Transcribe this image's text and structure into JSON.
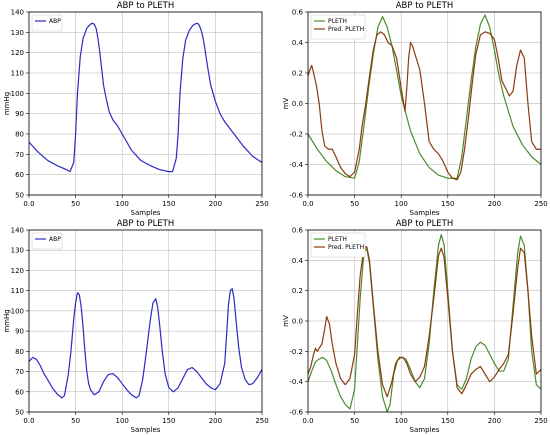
{
  "chart_data": [
    {
      "id": "p1",
      "type": "line",
      "title": "ABP to PLETH",
      "xlabel": "Samples",
      "ylabel": "mmHg",
      "xlim": [
        0,
        250
      ],
      "ylim": [
        50,
        140
      ],
      "xticks": [
        0,
        50,
        100,
        150,
        200,
        250
      ],
      "yticks": [
        50,
        60,
        70,
        80,
        90,
        100,
        110,
        120,
        130,
        140
      ],
      "grid": true,
      "legend": "top-left",
      "series": [
        {
          "name": "ABP",
          "color": "#2b2bc4",
          "x": [
            0,
            10,
            20,
            30,
            40,
            44,
            48,
            50,
            52,
            55,
            58,
            62,
            66,
            68,
            70,
            72,
            74,
            76,
            78,
            80,
            83,
            86,
            90,
            95,
            100,
            105,
            110,
            120,
            130,
            140,
            150,
            154,
            158,
            160,
            162,
            165,
            168,
            172,
            176,
            180,
            182,
            184,
            186,
            188,
            190,
            192,
            195,
            200,
            205,
            210,
            220,
            230,
            240,
            250
          ],
          "y": [
            76,
            71,
            67,
            64.5,
            62.5,
            61.5,
            66,
            80,
            100,
            118,
            127,
            132,
            134,
            134.5,
            134,
            132,
            127,
            120,
            112,
            104,
            97,
            91,
            87,
            84,
            80,
            76,
            72,
            67,
            64.5,
            62.5,
            61.5,
            61.5,
            68,
            80,
            100,
            117,
            126,
            131,
            133.5,
            134.5,
            134,
            132,
            129,
            124,
            118,
            112,
            104,
            96,
            90,
            86,
            80,
            74,
            69,
            66
          ]
        }
      ]
    },
    {
      "id": "p2",
      "type": "line",
      "title": "ABP to PLETH",
      "xlabel": "Samples",
      "ylabel": "mV",
      "xlim": [
        0,
        250
      ],
      "ylim": [
        -0.6,
        0.6
      ],
      "xticks": [
        0,
        50,
        100,
        150,
        200,
        250
      ],
      "yticks": [
        -0.6,
        -0.4,
        -0.2,
        0.0,
        0.2,
        0.4,
        0.6
      ],
      "grid": true,
      "legend": "top-left",
      "series": [
        {
          "name": "PLETH",
          "color": "#4a8c2a",
          "x": [
            0,
            10,
            20,
            30,
            40,
            50,
            55,
            60,
            65,
            70,
            75,
            80,
            85,
            90,
            95,
            100,
            110,
            120,
            130,
            140,
            150,
            160,
            165,
            170,
            175,
            180,
            185,
            190,
            195,
            200,
            205,
            210,
            220,
            230,
            240,
            250
          ],
          "y": [
            -0.2,
            -0.3,
            -0.38,
            -0.44,
            -0.48,
            -0.49,
            -0.38,
            -0.15,
            0.1,
            0.32,
            0.5,
            0.57,
            0.5,
            0.38,
            0.22,
            0.05,
            -0.18,
            -0.33,
            -0.42,
            -0.47,
            -0.49,
            -0.49,
            -0.35,
            -0.1,
            0.15,
            0.37,
            0.52,
            0.58,
            0.5,
            0.35,
            0.18,
            0.05,
            -0.15,
            -0.27,
            -0.35,
            -0.4
          ]
        },
        {
          "name": "Pred. PLETH",
          "color": "#8b3a0e",
          "x": [
            0,
            2,
            4,
            6,
            9,
            12,
            15,
            18,
            22,
            26,
            30,
            35,
            40,
            45,
            50,
            55,
            58,
            62,
            66,
            70,
            74,
            78,
            82,
            86,
            90,
            95,
            100,
            104,
            106,
            108,
            110,
            112,
            116,
            120,
            125,
            130,
            135,
            140,
            145,
            150,
            155,
            160,
            164,
            168,
            172,
            176,
            180,
            185,
            190,
            195,
            200,
            204,
            208,
            212,
            216,
            220,
            224,
            228,
            232,
            236,
            240,
            245,
            250
          ],
          "y": [
            0.18,
            0.22,
            0.25,
            0.2,
            0.12,
            0.0,
            -0.18,
            -0.28,
            -0.3,
            -0.3,
            -0.35,
            -0.42,
            -0.46,
            -0.48,
            -0.45,
            -0.3,
            -0.15,
            0.0,
            0.18,
            0.35,
            0.45,
            0.47,
            0.45,
            0.4,
            0.38,
            0.3,
            0.1,
            -0.05,
            0.1,
            0.3,
            0.4,
            0.38,
            0.3,
            0.22,
            0.0,
            -0.25,
            -0.3,
            -0.33,
            -0.38,
            -0.45,
            -0.49,
            -0.5,
            -0.45,
            -0.3,
            -0.1,
            0.12,
            0.32,
            0.45,
            0.47,
            0.46,
            0.42,
            0.3,
            0.15,
            0.1,
            0.05,
            0.08,
            0.25,
            0.35,
            0.3,
            0.0,
            -0.25,
            -0.3,
            -0.3
          ]
        }
      ]
    },
    {
      "id": "p3",
      "type": "line",
      "title": "ABP to PLETH",
      "xlabel": "Samples",
      "ylabel": "mmHg",
      "xlim": [
        0,
        250
      ],
      "ylim": [
        50,
        140
      ],
      "xticks": [
        0,
        50,
        100,
        150,
        200,
        250
      ],
      "yticks": [
        50,
        60,
        70,
        80,
        90,
        100,
        110,
        120,
        130,
        140
      ],
      "grid": true,
      "legend": "top-left",
      "series": [
        {
          "name": "ABP",
          "color": "#2b2bc4",
          "x": [
            0,
            4,
            8,
            12,
            16,
            20,
            25,
            30,
            35,
            38,
            42,
            45,
            48,
            50,
            52,
            54,
            56,
            58,
            60,
            62,
            64,
            66,
            70,
            75,
            80,
            85,
            90,
            95,
            100,
            105,
            110,
            115,
            118,
            122,
            126,
            130,
            133,
            136,
            138,
            140,
            143,
            146,
            150,
            155,
            160,
            165,
            170,
            175,
            180,
            185,
            190,
            195,
            200,
            205,
            210,
            212,
            214,
            216,
            218,
            220,
            222,
            225,
            228,
            232,
            236,
            240,
            245,
            250
          ],
          "y": [
            75,
            77,
            76,
            73,
            69,
            66,
            62,
            59,
            57,
            58,
            68,
            80,
            96,
            104,
            109,
            108,
            102,
            92,
            80,
            70,
            64,
            61,
            58.5,
            60,
            65,
            68.5,
            69,
            67,
            64,
            61,
            58.5,
            57,
            58,
            66,
            80,
            95,
            104,
            106,
            102,
            94,
            80,
            69,
            62,
            60,
            62,
            66.5,
            71,
            72,
            70,
            67,
            64,
            62,
            61,
            64,
            74,
            88,
            103,
            110,
            111,
            106,
            96,
            82,
            72,
            66,
            63.5,
            64,
            67,
            71
          ]
        }
      ]
    },
    {
      "id": "p4",
      "type": "line",
      "title": "ABP to PLETH",
      "xlabel": "Samples",
      "ylabel": "mV",
      "xlim": [
        0,
        250
      ],
      "ylim": [
        -0.6,
        0.6
      ],
      "xticks": [
        0,
        50,
        100,
        150,
        200,
        250
      ],
      "yticks": [
        -0.6,
        -0.4,
        -0.2,
        0.0,
        0.2,
        0.4,
        0.6
      ],
      "grid": true,
      "legend": "top-left",
      "series": [
        {
          "name": "PLETH",
          "color": "#4a8c2a",
          "x": [
            0,
            4,
            8,
            12,
            16,
            20,
            25,
            30,
            35,
            40,
            45,
            50,
            53,
            56,
            60,
            63,
            66,
            70,
            75,
            80,
            85,
            88,
            92,
            96,
            100,
            105,
            110,
            115,
            120,
            125,
            130,
            135,
            140,
            143,
            146,
            150,
            155,
            160,
            165,
            170,
            175,
            180,
            185,
            190,
            195,
            200,
            205,
            210,
            215,
            220,
            225,
            228,
            232,
            236,
            240,
            245,
            250
          ],
          "y": [
            -0.4,
            -0.33,
            -0.27,
            -0.25,
            -0.24,
            -0.26,
            -0.33,
            -0.42,
            -0.5,
            -0.55,
            -0.58,
            -0.45,
            -0.15,
            0.15,
            0.45,
            0.48,
            0.38,
            0.1,
            -0.25,
            -0.5,
            -0.6,
            -0.55,
            -0.35,
            -0.26,
            -0.24,
            -0.25,
            -0.32,
            -0.4,
            -0.44,
            -0.38,
            -0.15,
            0.2,
            0.5,
            0.57,
            0.5,
            0.2,
            -0.2,
            -0.42,
            -0.45,
            -0.38,
            -0.25,
            -0.17,
            -0.14,
            -0.16,
            -0.22,
            -0.28,
            -0.33,
            -0.33,
            -0.25,
            0.1,
            0.45,
            0.56,
            0.5,
            0.2,
            -0.2,
            -0.42,
            -0.45
          ]
        },
        {
          "name": "Pred. PLETH",
          "color": "#8b3a0e",
          "x": [
            0,
            3,
            6,
            8,
            10,
            12,
            15,
            18,
            20,
            23,
            26,
            30,
            35,
            40,
            45,
            50,
            53,
            56,
            60,
            63,
            66,
            70,
            75,
            80,
            85,
            90,
            94,
            98,
            102,
            106,
            110,
            115,
            120,
            125,
            130,
            135,
            140,
            143,
            146,
            150,
            155,
            160,
            165,
            170,
            175,
            180,
            185,
            190,
            195,
            200,
            205,
            210,
            215,
            220,
            225,
            228,
            232,
            236,
            240,
            245,
            250
          ],
          "y": [
            -0.35,
            -0.3,
            -0.22,
            -0.18,
            -0.2,
            -0.18,
            -0.15,
            -0.05,
            0.03,
            -0.02,
            -0.15,
            -0.28,
            -0.38,
            -0.42,
            -0.38,
            -0.22,
            0.05,
            0.3,
            0.48,
            0.49,
            0.4,
            0.12,
            -0.2,
            -0.42,
            -0.5,
            -0.4,
            -0.28,
            -0.24,
            -0.24,
            -0.28,
            -0.35,
            -0.4,
            -0.37,
            -0.3,
            -0.1,
            0.15,
            0.43,
            0.48,
            0.42,
            0.15,
            -0.2,
            -0.44,
            -0.48,
            -0.42,
            -0.35,
            -0.32,
            -0.3,
            -0.35,
            -0.4,
            -0.37,
            -0.32,
            -0.28,
            -0.22,
            0.05,
            0.35,
            0.48,
            0.45,
            0.2,
            -0.1,
            -0.35,
            -0.32
          ]
        }
      ]
    }
  ]
}
